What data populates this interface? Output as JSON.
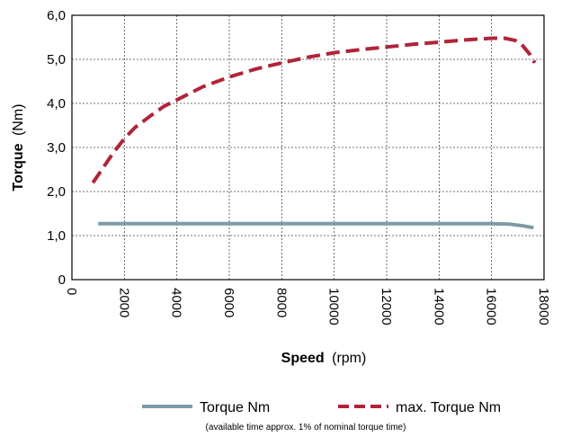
{
  "chart_data": {
    "type": "line",
    "xlabel": {
      "bold": "Speed",
      "unit": "(rpm)"
    },
    "ylabel": {
      "bold": "Torque",
      "unit": "(Nm)"
    },
    "xlim": [
      0,
      18000
    ],
    "ylim": [
      0,
      6.0
    ],
    "x_ticks": [
      "0",
      "2000",
      "4000",
      "6000",
      "8000",
      "10000",
      "12000",
      "14000",
      "16000",
      "18000"
    ],
    "y_ticks": [
      "0",
      "1,0",
      "2,0",
      "3,0",
      "4,0",
      "5,0",
      "6,0"
    ],
    "grid": true,
    "legend_position": "bottom",
    "series": [
      {
        "name": "Torque Nm",
        "color": "#7d9aa8",
        "style": "solid",
        "x": [
          1000,
          2000,
          4000,
          6000,
          8000,
          10000,
          12000,
          14000,
          16000,
          16700,
          17200,
          17600
        ],
        "y": [
          1.27,
          1.27,
          1.27,
          1.27,
          1.27,
          1.27,
          1.27,
          1.27,
          1.27,
          1.26,
          1.22,
          1.18
        ]
      },
      {
        "name": "max. Torque Nm",
        "color": "#b0243a",
        "style": "dashed",
        "x": [
          800,
          1200,
          1600,
          2000,
          2400,
          3000,
          3500,
          4000,
          4500,
          5000,
          6000,
          7000,
          8000,
          9000,
          10000,
          11000,
          12000,
          13000,
          14000,
          15000,
          16000,
          16500,
          16900,
          17200,
          17450,
          17650
        ],
        "y": [
          2.2,
          2.55,
          2.9,
          3.2,
          3.45,
          3.72,
          3.93,
          4.08,
          4.23,
          4.38,
          4.6,
          4.78,
          4.92,
          5.05,
          5.15,
          5.22,
          5.28,
          5.34,
          5.39,
          5.44,
          5.48,
          5.48,
          5.43,
          5.3,
          5.12,
          4.92
        ]
      }
    ],
    "note": "(available time approx. 1% of nominal torque time)"
  }
}
